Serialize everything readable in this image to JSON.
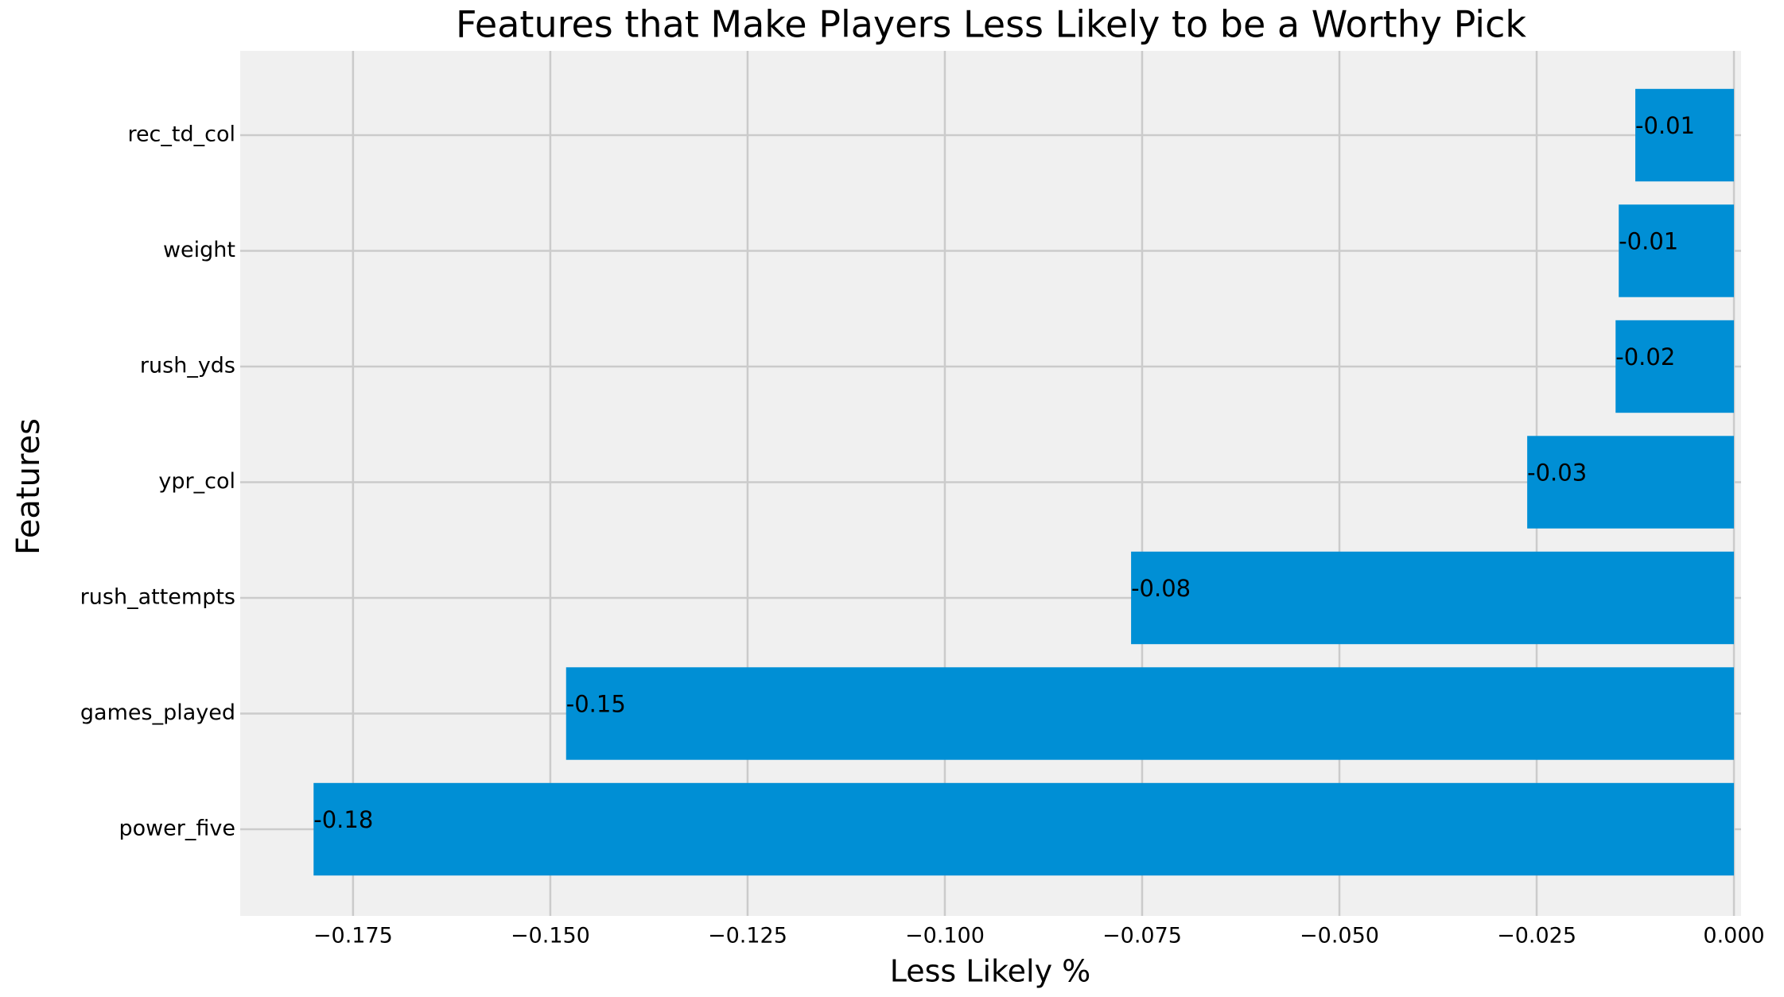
{
  "chart_data": {
    "type": "barh",
    "title": "Features that Make Players Less Likely to be a Worthy Pick",
    "xlabel": "Less Likely %",
    "ylabel": "Features",
    "categories": [
      "power_five",
      "games_played",
      "rush_attempts",
      "ypr_col",
      "rush_yds",
      "weight",
      "rec_td_col"
    ],
    "values": [
      -0.18,
      -0.148,
      -0.0764,
      -0.0262,
      -0.015,
      -0.0146,
      -0.0125
    ],
    "value_labels": [
      "-0.18",
      "-0.15",
      "-0.08",
      "-0.03",
      "-0.02",
      "-0.01",
      "-0.01"
    ],
    "color": "#008fd5",
    "xlim": [
      -0.1893,
      0.0009
    ],
    "xticks": [
      {
        "value": -0.175,
        "label": "−0.175"
      },
      {
        "value": -0.15,
        "label": "−0.150"
      },
      {
        "value": -0.125,
        "label": "−0.125"
      },
      {
        "value": -0.1,
        "label": "−0.100"
      },
      {
        "value": -0.075,
        "label": "−0.075"
      },
      {
        "value": -0.05,
        "label": "−0.050"
      },
      {
        "value": -0.025,
        "label": "−0.025"
      },
      {
        "value": 0,
        "label": "0.000"
      }
    ],
    "grid": true
  }
}
